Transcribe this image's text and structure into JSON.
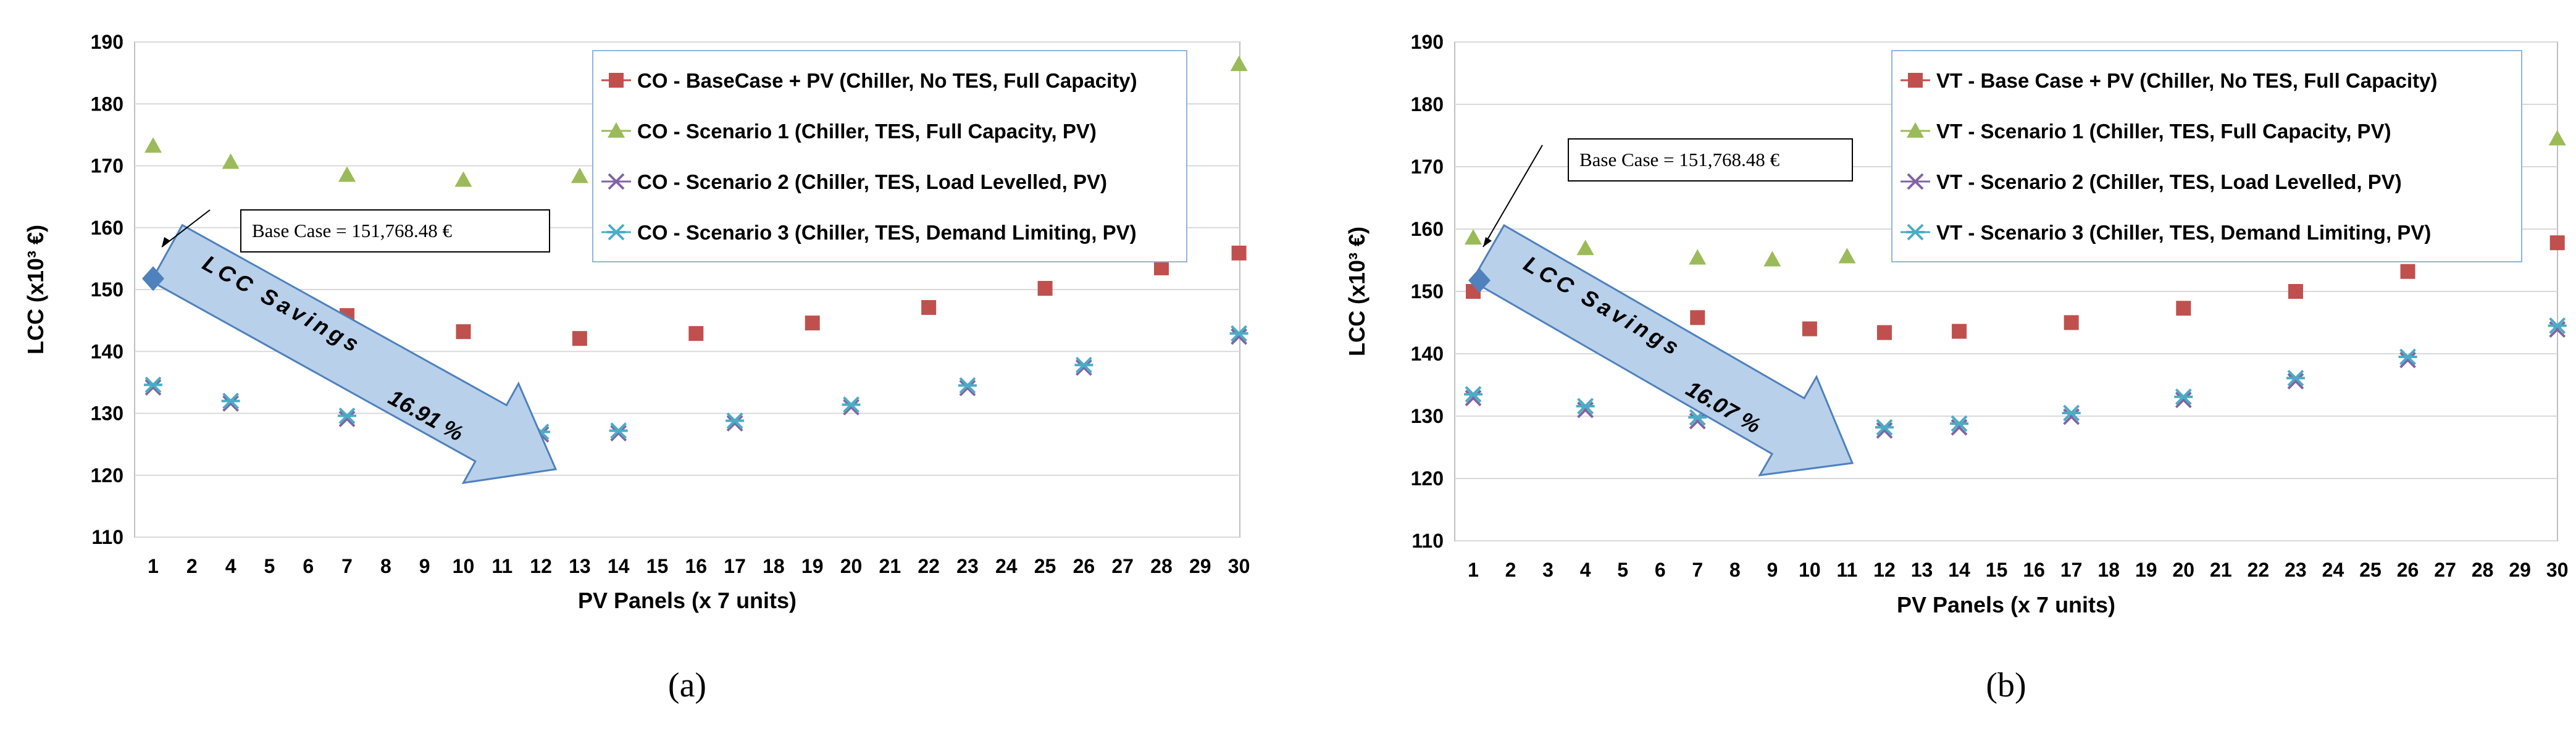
{
  "colors": {
    "base_case_pv": "#c0504d",
    "scenario_1": "#9bbb59",
    "scenario_2": "#8064a2",
    "scenario_3": "#4bacc6",
    "base_marker": "#4f81bd",
    "arrow_fill": "#b8d0ea",
    "arrow_stroke": "#4f81bd",
    "grid": "#d9d9d9",
    "legend_border": "#8eb4e3"
  },
  "chart_data": [
    {
      "type": "scatter",
      "panel_label": "(a)",
      "ylabel": "LCC (x10³ €)",
      "xlabel": "PV Panels (x 7 units)",
      "ylim": [
        110,
        190
      ],
      "y_ticks": [
        110,
        120,
        130,
        140,
        150,
        160,
        170,
        180,
        190
      ],
      "x_categories": [
        "1",
        "2",
        "4",
        "5",
        "6",
        "7",
        "8",
        "9",
        "10",
        "11",
        "12",
        "13",
        "14",
        "15",
        "16",
        "17",
        "18",
        "19",
        "20",
        "21",
        "22",
        "23",
        "24",
        "25",
        "26",
        "27",
        "28",
        "29",
        "30"
      ],
      "grid": "horizontal",
      "legend_position": "top-right",
      "series": [
        {
          "name": "CO - BaseCase + PV (Chiller, No TES, Full Capacity)",
          "marker": "square",
          "color_key": "base_case_pv",
          "x": [
            "7",
            "10",
            "13",
            "16",
            "19",
            "22",
            "25",
            "28",
            "30"
          ],
          "values": [
            145.8,
            143.2,
            142.1,
            142.9,
            144.6,
            147.1,
            150.2,
            153.5,
            155.9
          ]
        },
        {
          "name": "CO - Scenario 1 (Chiller, TES,  Full Capacity, PV)",
          "marker": "triangle",
          "color_key": "scenario_1",
          "x": [
            "1",
            "4",
            "7",
            "10",
            "13",
            "30"
          ],
          "values": [
            173.2,
            170.6,
            168.5,
            167.7,
            168.3,
            186.4
          ]
        },
        {
          "name": "CO - Scenario 2 (Chiller, TES, Load Levelled, PV)",
          "marker": "cross",
          "color_key": "scenario_2",
          "x": [
            "1",
            "4",
            "7",
            "12",
            "14",
            "17",
            "20",
            "23",
            "26",
            "30"
          ],
          "values": [
            134.2,
            131.6,
            129.1,
            126.6,
            126.8,
            128.4,
            131.0,
            134.1,
            137.4,
            142.4
          ]
        },
        {
          "name": "CO - Scenario 3 (Chiller, TES, Demand Limiting, PV)",
          "marker": "star",
          "color_key": "scenario_3",
          "x": [
            "1",
            "4",
            "7",
            "12",
            "14",
            "17",
            "20",
            "23",
            "26",
            "30"
          ],
          "values": [
            134.6,
            132.0,
            129.6,
            127.0,
            127.2,
            128.8,
            131.4,
            134.5,
            137.8,
            142.9
          ]
        }
      ],
      "base_case": {
        "x": "1",
        "value": 151.77,
        "annotation": "Base Case = 151,768.48 €"
      },
      "arrow_label": "LCC Savings",
      "arrow_value": "16.91 %"
    },
    {
      "type": "scatter",
      "panel_label": "(b)",
      "ylabel": "LCC (x10³ €)",
      "xlabel": "PV Panels (x 7 units)",
      "ylim": [
        110,
        190
      ],
      "y_ticks": [
        110,
        120,
        130,
        140,
        150,
        160,
        170,
        180,
        190
      ],
      "x_categories": [
        "1",
        "2",
        "3",
        "4",
        "5",
        "6",
        "7",
        "8",
        "9",
        "10",
        "11",
        "12",
        "13",
        "14",
        "15",
        "16",
        "17",
        "18",
        "19",
        "20",
        "21",
        "22",
        "23",
        "24",
        "25",
        "26",
        "27",
        "28",
        "29",
        "30"
      ],
      "grid": "horizontal",
      "legend_position": "top-right",
      "series": [
        {
          "name": "VT - Base Case + PV (Chiller, No TES, Full Capacity)",
          "marker": "square",
          "color_key": "base_case_pv",
          "x": [
            "1",
            "7",
            "10",
            "12",
            "14",
            "17",
            "20",
            "23",
            "26",
            "30"
          ],
          "values": [
            150.0,
            145.8,
            144.0,
            143.4,
            143.6,
            145.0,
            147.3,
            150.0,
            153.2,
            157.8
          ]
        },
        {
          "name": "VT - Scenario 1 (Chiller, TES, Full Capacity, PV)",
          "marker": "triangle",
          "color_key": "scenario_1",
          "x": [
            "1",
            "4",
            "7",
            "9",
            "11",
            "30"
          ],
          "values": [
            158.6,
            156.9,
            155.4,
            155.1,
            155.6,
            174.5
          ]
        },
        {
          "name": "VT - Scenario 2 (Chiller, TES, Load Levelled, PV)",
          "marker": "cross",
          "color_key": "scenario_2",
          "x": [
            "1",
            "4",
            "7",
            "12",
            "14",
            "17",
            "20",
            "23",
            "26",
            "30"
          ],
          "values": [
            132.9,
            131.0,
            129.2,
            127.7,
            128.2,
            129.9,
            132.6,
            135.6,
            139.0,
            143.9
          ]
        },
        {
          "name": "VT - Scenario 3 (Chiller, TES, Demand Limiting, PV)",
          "marker": "star",
          "color_key": "scenario_3",
          "x": [
            "1",
            "4",
            "7",
            "12",
            "14",
            "17",
            "20",
            "23",
            "26",
            "30"
          ],
          "values": [
            133.5,
            131.6,
            129.8,
            128.2,
            128.8,
            130.5,
            133.1,
            136.1,
            139.5,
            144.5
          ]
        }
      ],
      "base_case": {
        "x": "1",
        "value": 151.77,
        "annotation": "Base Case = 151,768.48 €"
      },
      "arrow_label": "LCC Savings",
      "arrow_value": "16.07 %"
    }
  ]
}
